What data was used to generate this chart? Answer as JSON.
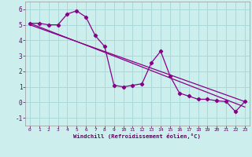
{
  "xlabel": "Windchill (Refroidissement éolien,°C)",
  "background_color": "#cceeed",
  "grid_color": "#aad8d8",
  "line_color": "#880088",
  "xlim": [
    -0.5,
    23.5
  ],
  "ylim": [
    -1.5,
    6.5
  ],
  "xticks": [
    0,
    1,
    2,
    3,
    4,
    5,
    6,
    7,
    8,
    9,
    10,
    11,
    12,
    13,
    14,
    15,
    16,
    17,
    18,
    19,
    20,
    21,
    22,
    23
  ],
  "yticks": [
    -1,
    0,
    1,
    2,
    3,
    4,
    5,
    6
  ],
  "series1_x": [
    0,
    1,
    2,
    3,
    4,
    5,
    6,
    7,
    8,
    9,
    10,
    11,
    12,
    13,
    14,
    15,
    16,
    17,
    18,
    19,
    20,
    21,
    22,
    23
  ],
  "series1_y": [
    5.1,
    5.1,
    5.0,
    5.0,
    5.7,
    5.9,
    5.5,
    4.3,
    3.6,
    1.1,
    1.0,
    1.1,
    1.2,
    2.55,
    3.3,
    1.7,
    0.6,
    0.4,
    0.2,
    0.2,
    0.1,
    0.05,
    -0.6,
    0.05
  ],
  "trend1_x": [
    0,
    23
  ],
  "trend1_y": [
    5.1,
    -0.3
  ],
  "trend2_x": [
    0,
    23
  ],
  "trend2_y": [
    5.0,
    0.05
  ]
}
